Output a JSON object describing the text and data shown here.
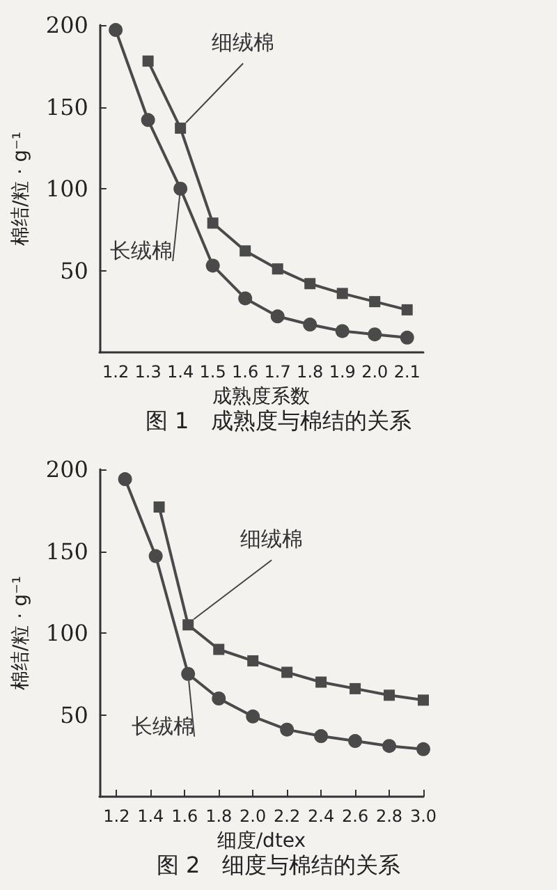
{
  "chart_data": [
    {
      "type": "line",
      "title": "图 1　成熟度与棉结的关系",
      "xlabel": "成熟度系数",
      "ylabel": "棉结/粒 · g⁻¹",
      "categories": [
        "1.2",
        "1.3",
        "1.4",
        "1.5",
        "1.6",
        "1.7",
        "1.8",
        "1.9",
        "2.0",
        "2.1"
      ],
      "ylim": [
        0,
        200
      ],
      "yticks": [
        50,
        100,
        150,
        200
      ],
      "grid": false,
      "legend": false,
      "line_style": "solid",
      "series": [
        {
          "name": "细绒棉",
          "color": "#4a4a4a",
          "marker": "square",
          "values": [
            null,
            178,
            137,
            79,
            62,
            51,
            42,
            36,
            31,
            26
          ]
        },
        {
          "name": "长绒棉",
          "color": "#4a4a4a",
          "marker": "circle",
          "values": [
            197,
            142,
            100,
            53,
            33,
            22,
            17,
            13,
            11,
            9
          ]
        }
      ]
    },
    {
      "type": "line",
      "title": "图 2　细度与棉结的关系",
      "xlabel": "细度/dtex",
      "ylabel": "棉结/粒 · g⁻¹",
      "xlim": [
        1.1,
        3.0
      ],
      "xticks": [
        1.2,
        1.4,
        1.6,
        1.8,
        {
          "value": 2,
          "label": "2.0"
        },
        2.2,
        2.4,
        2.6,
        2.8,
        {
          "value": 3,
          "label": "3.0"
        }
      ],
      "ylim": [
        0,
        200
      ],
      "yticks": [
        50,
        100,
        150,
        200
      ],
      "grid": false,
      "legend": false,
      "line_style": "solid",
      "series": [
        {
          "name": "细绒棉",
          "color": "#4a4a4a",
          "marker": "square",
          "x": [
            1.45,
            1.62,
            1.8,
            2.0,
            2.2,
            2.4,
            2.6,
            2.8,
            3.0
          ],
          "values": [
            177,
            105,
            90,
            83,
            76,
            70,
            66,
            62,
            59
          ]
        },
        {
          "name": "长绒棉",
          "color": "#4a4a4a",
          "marker": "circle",
          "x": [
            1.25,
            1.43,
            1.62,
            1.8,
            2.0,
            2.2,
            2.4,
            2.6,
            2.8,
            3.0
          ],
          "values": [
            194,
            147,
            75,
            60,
            49,
            41,
            37,
            34,
            31,
            29
          ]
        }
      ]
    }
  ]
}
